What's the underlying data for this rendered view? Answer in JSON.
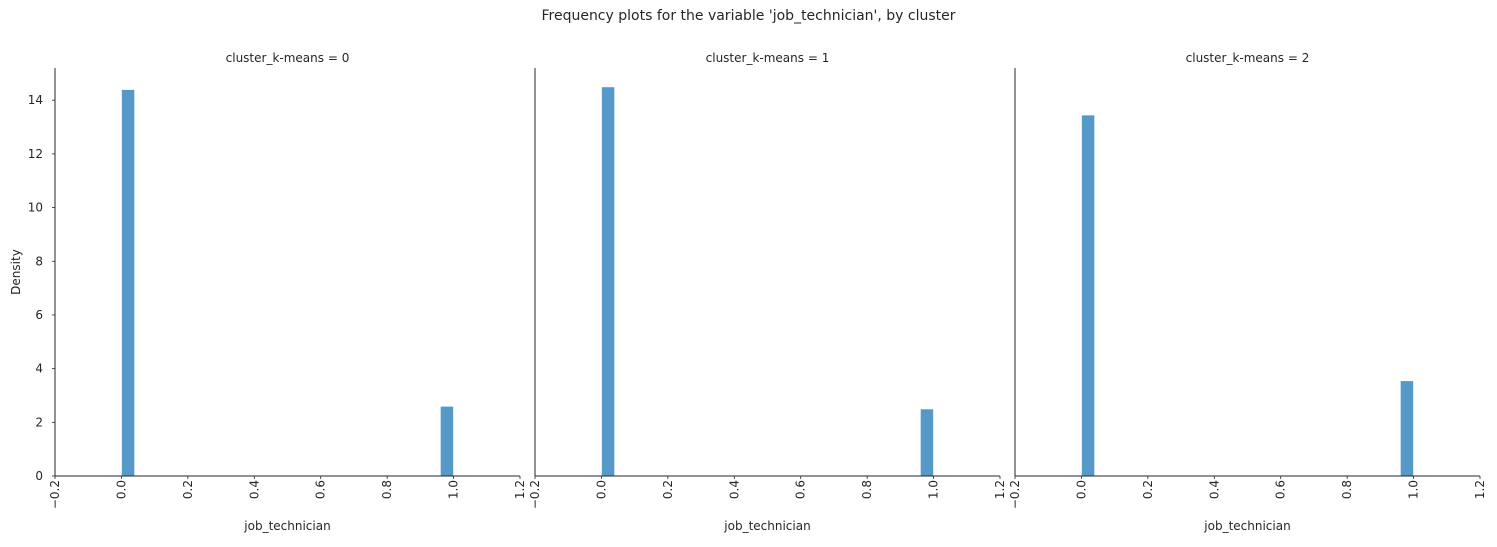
{
  "figure": {
    "title": "Frequency plots for the variable 'job_technician', by cluster"
  },
  "colors": {
    "bar_fill": "#5499c7",
    "bar_edge": "#ffffff",
    "axis": "#262626"
  },
  "chart_data": [
    {
      "type": "bar",
      "title": "cluster_k-means = 0",
      "xlabel": "job_technician",
      "ylabel": "Density",
      "xlim": [
        -0.2,
        1.2
      ],
      "ylim": [
        0,
        15.2
      ],
      "xticks": [
        "−0.2",
        "0.0",
        "0.2",
        "0.4",
        "0.6",
        "0.8",
        "1.0",
        "1.2"
      ],
      "xtick_values": [
        -0.2,
        0.0,
        0.2,
        0.4,
        0.6,
        0.8,
        1.0,
        1.2
      ],
      "yticks": [
        "0",
        "2",
        "4",
        "6",
        "8",
        "10",
        "12",
        "14"
      ],
      "ytick_values": [
        0,
        2,
        4,
        6,
        8,
        10,
        12,
        14
      ],
      "bin_width": 0.04,
      "bars": [
        {
          "x": 0.0,
          "value": 14.4
        },
        {
          "x": 0.96,
          "value": 2.6
        }
      ],
      "grid": false
    },
    {
      "type": "bar",
      "title": "cluster_k-means = 1",
      "xlabel": "job_technician",
      "ylabel": "",
      "xlim": [
        -0.2,
        1.2
      ],
      "ylim": [
        0,
        15.2
      ],
      "xticks": [
        "−0.2",
        "0.0",
        "0.2",
        "0.4",
        "0.6",
        "0.8",
        "1.0",
        "1.2"
      ],
      "xtick_values": [
        -0.2,
        0.0,
        0.2,
        0.4,
        0.6,
        0.8,
        1.0,
        1.2
      ],
      "yticks": [],
      "ytick_values": [],
      "bin_width": 0.04,
      "bars": [
        {
          "x": 0.0,
          "value": 14.5
        },
        {
          "x": 0.96,
          "value": 2.5
        }
      ],
      "grid": false
    },
    {
      "type": "bar",
      "title": "cluster_k-means = 2",
      "xlabel": "job_technician",
      "ylabel": "",
      "xlim": [
        -0.2,
        1.2
      ],
      "ylim": [
        0,
        15.2
      ],
      "xticks": [
        "−0.2",
        "0.0",
        "0.2",
        "0.4",
        "0.6",
        "0.8",
        "1.0",
        "1.2"
      ],
      "xtick_values": [
        -0.2,
        0.0,
        0.2,
        0.4,
        0.6,
        0.8,
        1.0,
        1.2
      ],
      "yticks": [],
      "ytick_values": [],
      "bin_width": 0.04,
      "bars": [
        {
          "x": 0.0,
          "value": 13.45
        },
        {
          "x": 0.96,
          "value": 3.55
        }
      ],
      "grid": false
    }
  ]
}
